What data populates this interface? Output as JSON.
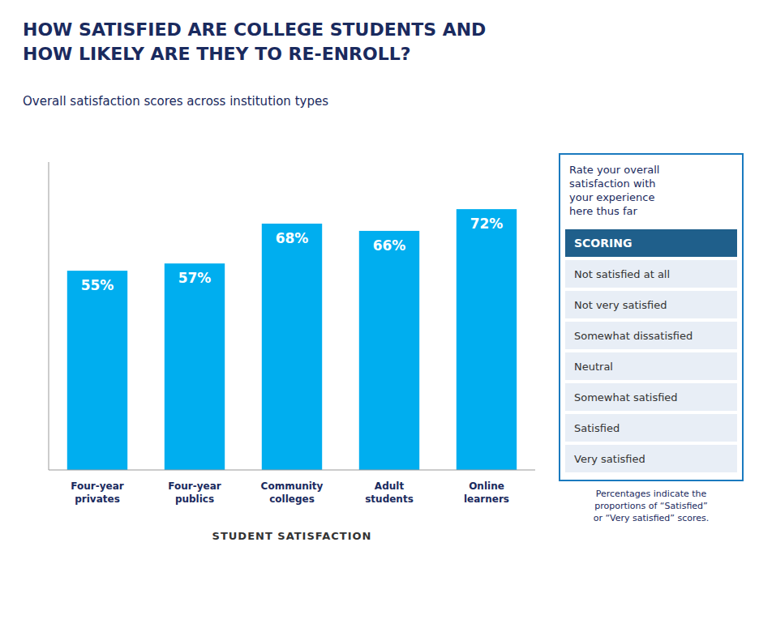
{
  "chart_data": {
    "type": "bar",
    "title": "HOW SATISFIED ARE COLLEGE STUDENTS AND\nHOW LIKELY ARE THEY TO RE-ENROLL?",
    "subtitle": "Overall satisfaction scores across institution types",
    "xlabel": "STUDENT SATISFACTION",
    "categories": [
      "Four-year\nprivates",
      "Four-year\npublics",
      "Community\ncolleges",
      "Adult\nstudents",
      "Online\nlearners"
    ],
    "values": [
      55,
      57,
      68,
      66,
      72
    ],
    "value_labels": [
      "55%",
      "57%",
      "68%",
      "66%",
      "72%"
    ],
    "color": "#00AEEF",
    "data_labels": true,
    "ylim": [
      0,
      85
    ],
    "tick_labels": false,
    "grid": false,
    "annotations": [
      "Rate your overall\nsatisfaction with\nyour experience\nhere thus far",
      "SCORING",
      "Not satisfied at all",
      "Not very satisfied",
      "Somewhat dissatisfied",
      "Neutral",
      "Somewhat satisfied",
      "Satisfied",
      "Very satisfied",
      "Percentages indicate the\nproportions of “Satisfied”\nor “Very satisfied” scores."
    ]
  }
}
